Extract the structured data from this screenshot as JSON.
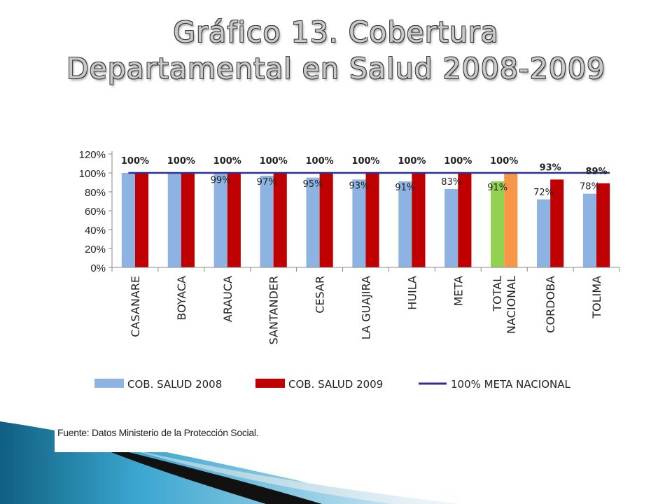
{
  "slide": {
    "title_line1": "Gráfico 13. Cobertura",
    "title_line2": "Departamental en Salud 2008-2009",
    "source": "Fuente: Datos Ministerio de la Protección Social."
  },
  "colors": {
    "series_2008": "#8db3e2",
    "series_2009": "#c00000",
    "meta_line": "#2e3192",
    "total_2008": "#92d050",
    "total_2009": "#f79646"
  },
  "chart_data": {
    "type": "bar",
    "categories": [
      "CASANARE",
      "BOYACA",
      "ARAUCA",
      "SANTANDER",
      "CESAR",
      "LA GUAJIRA",
      "HUILA",
      "META",
      "TOTAL NACIONAL",
      "CORDOBA",
      "TOLIMA"
    ],
    "category_lines": [
      [
        "CASANARE"
      ],
      [
        "BOYACA"
      ],
      [
        "ARAUCA"
      ],
      [
        "SANTANDER"
      ],
      [
        "CESAR"
      ],
      [
        "LA GUAJIRA"
      ],
      [
        "HUILA"
      ],
      [
        "META"
      ],
      [
        "TOTAL",
        "NACIONAL"
      ],
      [
        "CORDOBA"
      ],
      [
        "TOLIMA"
      ]
    ],
    "series": [
      {
        "name": "COB. SALUD 2008",
        "values": [
          100,
          100,
          99,
          97,
          95,
          93,
          91,
          83,
          91,
          72,
          78
        ],
        "labels": [
          "",
          "",
          "99%",
          "97%",
          "95%",
          "93%",
          "91%",
          "83%",
          "91%",
          "72%",
          "78%"
        ]
      },
      {
        "name": "COB. SALUD 2009",
        "values": [
          100,
          100,
          100,
          100,
          100,
          100,
          100,
          100,
          100,
          93,
          89
        ],
        "labels": [
          "100%",
          "100%",
          "100%",
          "100%",
          "100%",
          "100%",
          "100%",
          "100%",
          "100%",
          "93%",
          "89%"
        ]
      }
    ],
    "reference_line": {
      "name": "100% META NACIONAL",
      "value": 100
    },
    "y_ticks": [
      "0%",
      "20%",
      "40%",
      "60%",
      "80%",
      "100%",
      "120%"
    ],
    "ylim": [
      0,
      120
    ],
    "highlight_category": "TOTAL NACIONAL",
    "legend_position": "bottom",
    "grid": false
  }
}
